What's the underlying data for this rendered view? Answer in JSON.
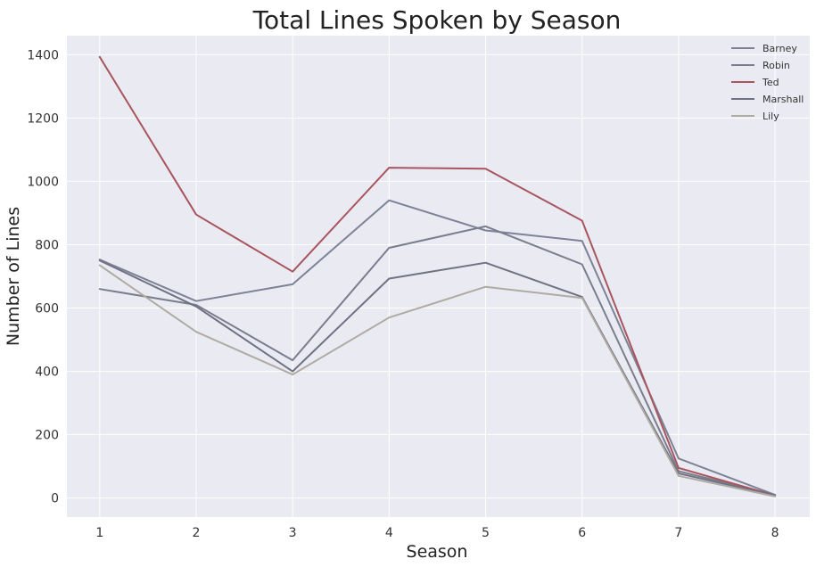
{
  "chart_data": {
    "type": "line",
    "title": "Total Lines Spoken by Season",
    "xlabel": "Season",
    "ylabel": "Number of Lines",
    "x": [
      1,
      2,
      3,
      4,
      5,
      6,
      7,
      8
    ],
    "xticks": [
      "1",
      "2",
      "3",
      "4",
      "5",
      "6",
      "7",
      "8"
    ],
    "yticks": [
      0,
      200,
      400,
      600,
      800,
      1000,
      1200,
      1400
    ],
    "ylim": [
      -60,
      1460
    ],
    "xlim": [
      0.66,
      8.36
    ],
    "grid": true,
    "legend_position": "top-right",
    "background": "#eaeaf2",
    "series": [
      {
        "name": "Barney",
        "color": "#7d8396",
        "values": [
          753,
          622,
          675,
          940,
          845,
          812,
          125,
          10
        ]
      },
      {
        "name": "Robin",
        "color": "#7a7d8e",
        "values": [
          660,
          610,
          435,
          790,
          858,
          738,
          85,
          10
        ]
      },
      {
        "name": "Ted",
        "color": "#a8555e",
        "values": [
          1393,
          895,
          715,
          1043,
          1040,
          876,
          95,
          8
        ]
      },
      {
        "name": "Marshall",
        "color": "#6f7283",
        "values": [
          750,
          605,
          400,
          693,
          743,
          635,
          78,
          8
        ]
      },
      {
        "name": "Lily",
        "color": "#b0aba2",
        "values": [
          735,
          525,
          390,
          570,
          667,
          632,
          70,
          5
        ]
      }
    ]
  }
}
